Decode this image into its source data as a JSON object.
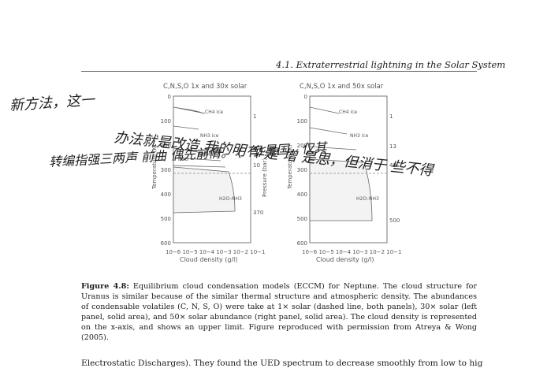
{
  "header": {
    "section": "4.1.  Extraterrestrial lightning in the Solar System"
  },
  "figure": {
    "left_panel": {
      "title": "C,N,S,O 1x and 30x solar",
      "ylabel": "Temperature (K)",
      "yticks": [
        "0",
        "100",
        "200",
        "300",
        "400",
        "500",
        "600"
      ],
      "xlabel": "Cloud density (g/l)",
      "xticks": "10−6 10−5 10−4 10−3 10−2 10−1",
      "right_ticks": [
        "1",
        "10",
        "370"
      ],
      "right_label": "Pressure (bar)",
      "labels": [
        "CH4 ice",
        "NH3 ice",
        "NH4SH",
        "H2O",
        "H2O–NH3"
      ]
    },
    "right_panel": {
      "title": "C,N,S,O 1x and 50x solar",
      "ylabel": "Temperature (K)",
      "yticks": [
        "0",
        "100",
        "200",
        "300",
        "400",
        "500",
        "600"
      ],
      "xlabel": "Cloud density (g/l)",
      "xticks": "10−6 10−5 10−4 10−3 10−2 10−1",
      "right_ticks": [
        "1",
        "13",
        "40",
        "500"
      ],
      "labels": [
        "CH4 ice",
        "NH3 ice",
        "H2O–NH3"
      ]
    }
  },
  "caption": {
    "label": "Figure 4.8:",
    "text": "Equilibrium cloud condensation models (ECCM) for Neptune. The cloud structure for Uranus is similar because of the similar thermal structure and atmospheric density. The abundances of condensable volatiles (C, N, S, O) were take at 1× solar (dashed line, both panels), 30× solar (left panel, solid area), and 50× solar abundance (right panel, solid area). The cloud density is represented on the x-axis, and shows an upper limit. Figure reproduced with permission from Atreya & Wong (2005)."
  },
  "body_text": "Electrostatic Discharges). They found the UED spectrum to decrease smoothly from low to high",
  "handwriting": {
    "line1": "新方法，这一",
    "line2": "办法就是改造 我的明 华是 增 是思，但消于 些不得",
    "line3": "转编指强三两声 前曲 偶先前情。 ( 有)星国，仅其"
  }
}
